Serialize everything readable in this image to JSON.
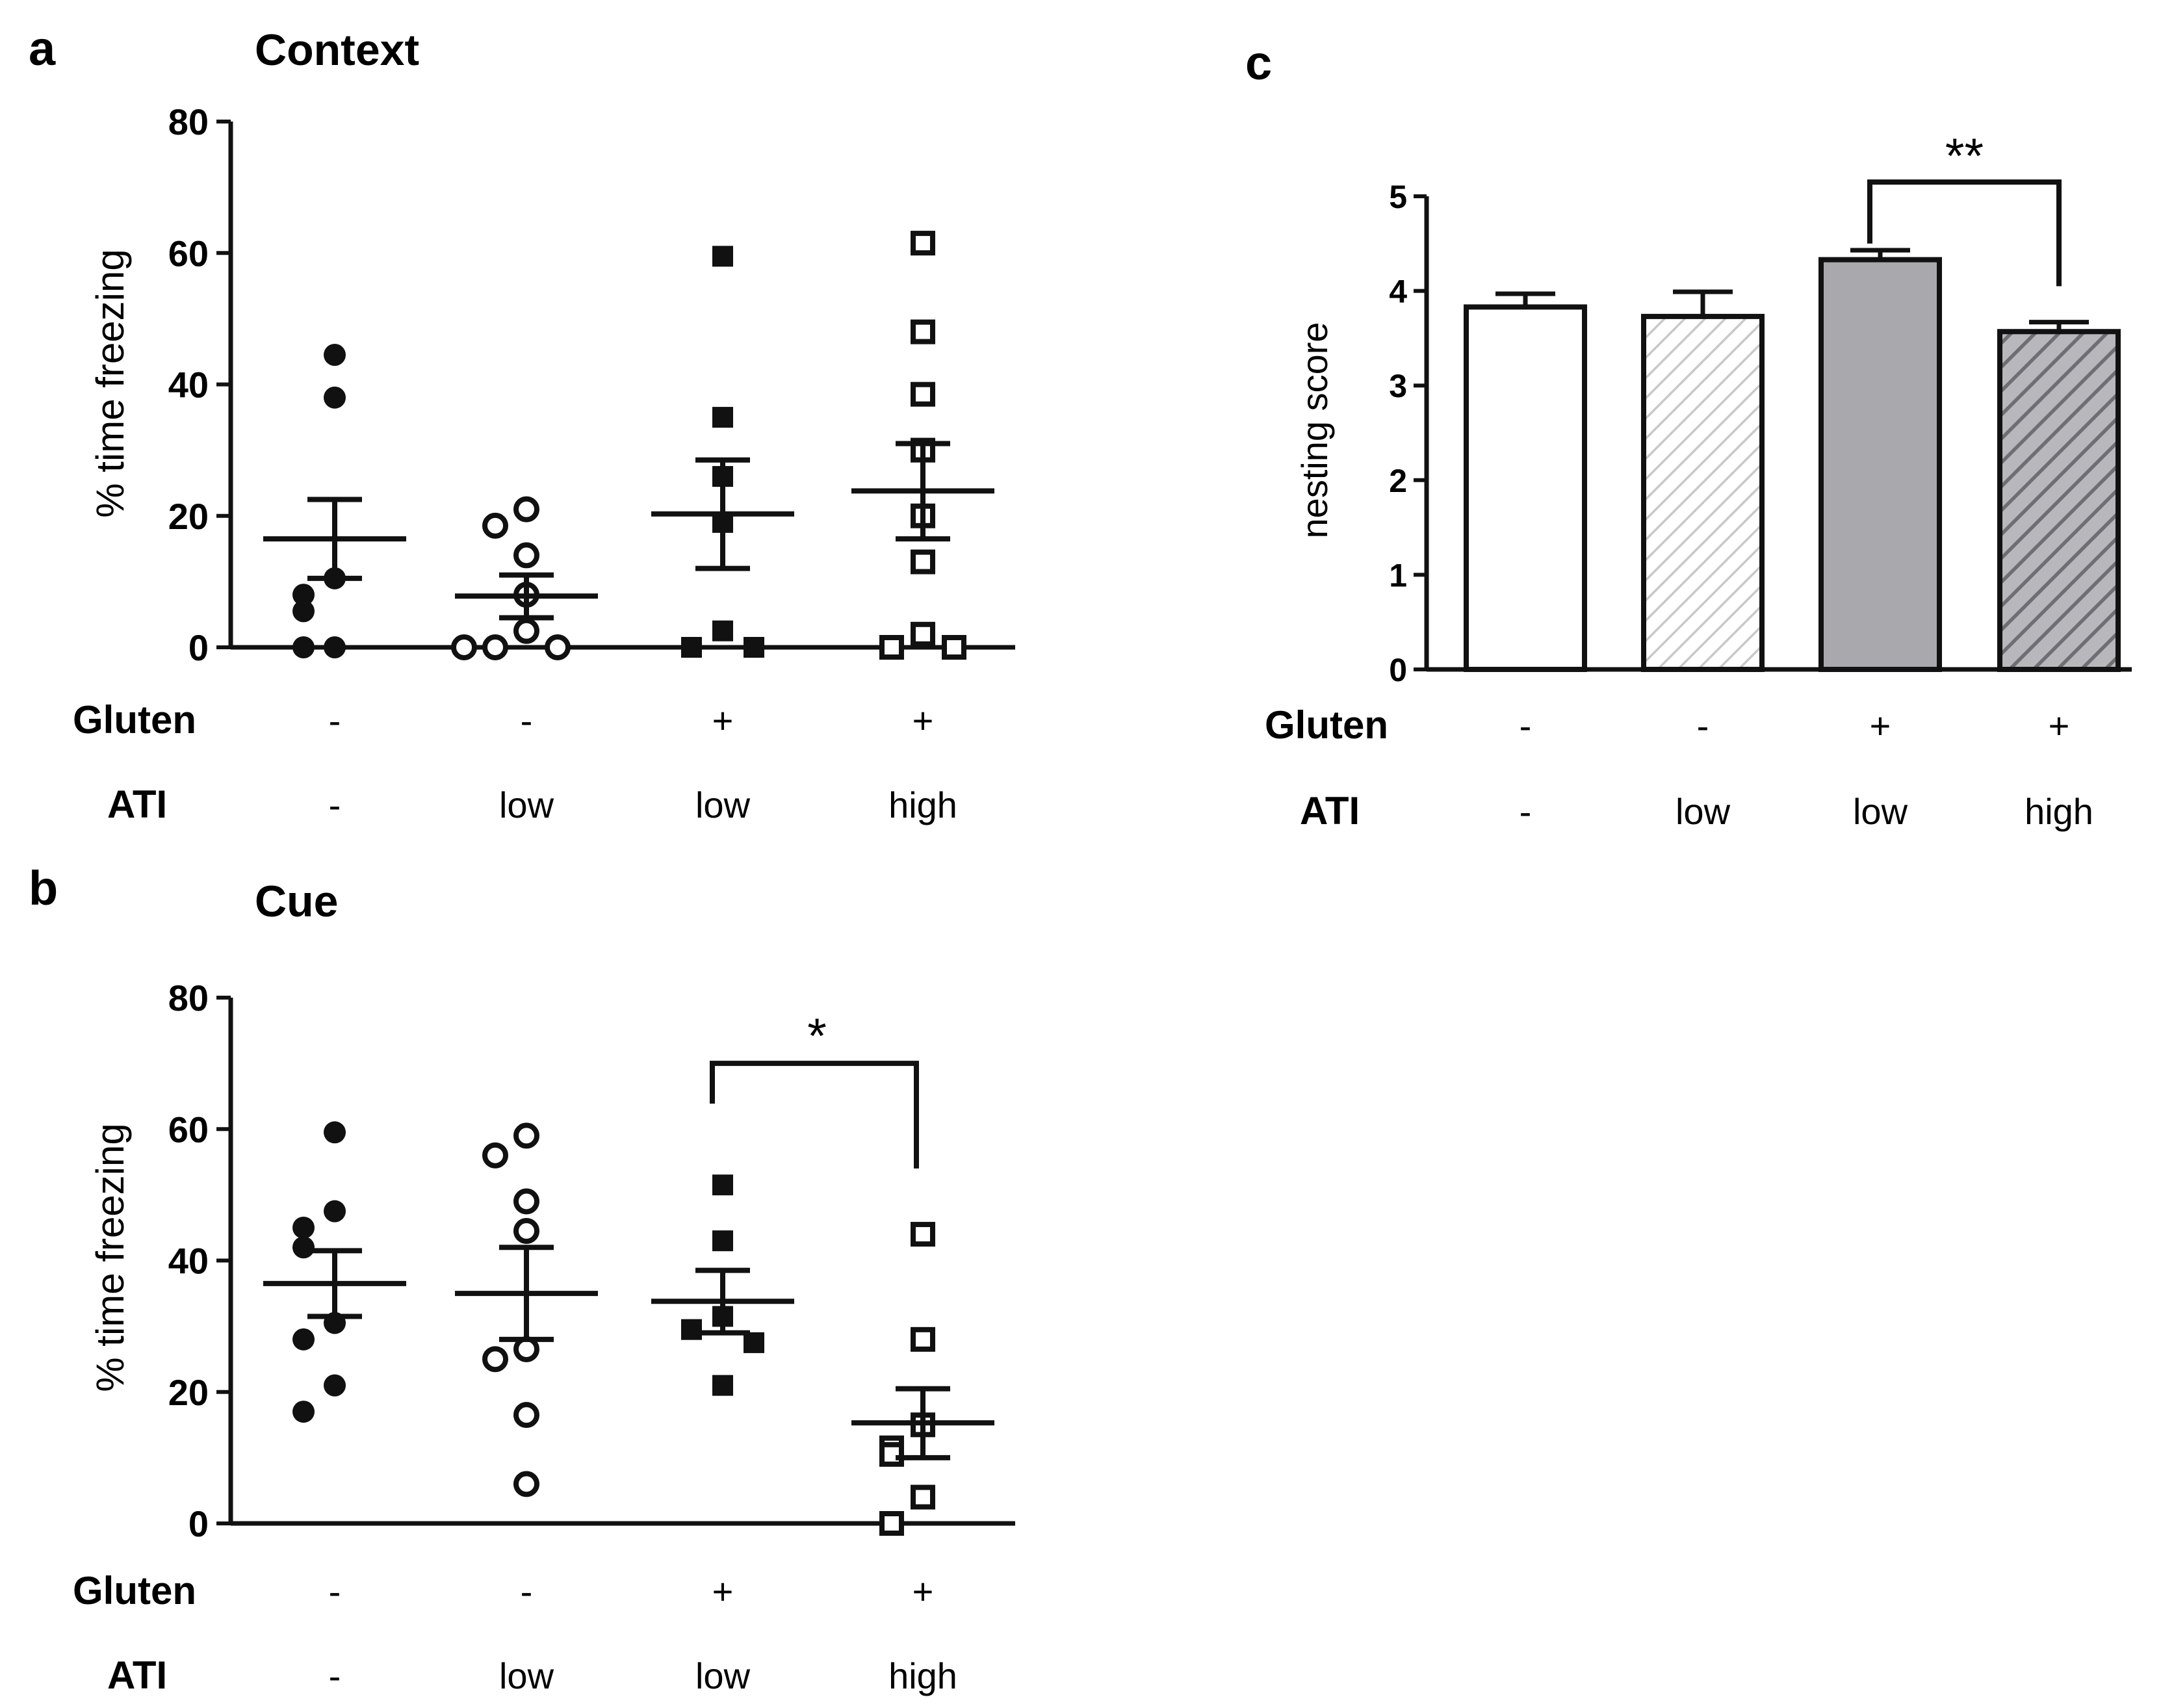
{
  "figure": {
    "panel_a": {
      "letter": "a",
      "title": "Context"
    },
    "panel_b": {
      "letter": "b",
      "title": "Cue"
    },
    "panel_c": {
      "letter": "c"
    },
    "row_labels": {
      "gluten": "Gluten",
      "ati": "ATI"
    }
  },
  "chart_data": [
    {
      "id": "a",
      "type": "scatter",
      "title": "Context",
      "ylabel": "% time freezing",
      "ylim": [
        0,
        80
      ],
      "yticks": [
        0,
        20,
        40,
        60,
        80
      ],
      "groups": [
        {
          "gluten": "-",
          "ati": "-",
          "marker": "filled-circle",
          "values": [
            44.5,
            38,
            10.5,
            8,
            5.5,
            0,
            0
          ],
          "mean": 16.5,
          "sem_low": 10.5,
          "sem_high": 22.5
        },
        {
          "gluten": "-",
          "ati": "low",
          "marker": "open-circle",
          "values": [
            21,
            18.5,
            14,
            8,
            2.5,
            0,
            0,
            0
          ],
          "mean": 7.8,
          "sem_low": 4.5,
          "sem_high": 11
        },
        {
          "gluten": "+",
          "ati": "low",
          "marker": "filled-square",
          "values": [
            59.5,
            35,
            26,
            19,
            2.5,
            0,
            0
          ],
          "mean": 20.3,
          "sem_low": 12,
          "sem_high": 28.5
        },
        {
          "gluten": "+",
          "ati": "high",
          "marker": "open-square",
          "values": [
            61.5,
            48,
            38.5,
            30,
            20,
            13,
            2,
            0,
            0
          ],
          "mean": 23.8,
          "sem_low": 16.5,
          "sem_high": 31
        }
      ]
    },
    {
      "id": "b",
      "type": "scatter",
      "title": "Cue",
      "ylabel": "% time freezing",
      "ylim": [
        0,
        80
      ],
      "yticks": [
        0,
        20,
        40,
        60,
        80
      ],
      "groups": [
        {
          "gluten": "-",
          "ati": "-",
          "marker": "filled-circle",
          "values": [
            59.5,
            47.5,
            45,
            42,
            30.5,
            28,
            21,
            17
          ],
          "mean": 36.5,
          "sem_low": 31.5,
          "sem_high": 41.5
        },
        {
          "gluten": "-",
          "ati": "low",
          "marker": "open-circle",
          "values": [
            59,
            56,
            49,
            44.5,
            26.5,
            25,
            16.5,
            6
          ],
          "mean": 35,
          "sem_low": 28,
          "sem_high": 42
        },
        {
          "gluten": "+",
          "ati": "low",
          "marker": "filled-square",
          "values": [
            51.5,
            43,
            31.5,
            29.5,
            27.5,
            21
          ],
          "mean": 33.8,
          "sem_low": 29,
          "sem_high": 38.5
        },
        {
          "gluten": "+",
          "ati": "high",
          "marker": "open-square",
          "values": [
            44,
            28,
            15,
            11.5,
            10.5,
            4,
            0
          ],
          "mean": 15.3,
          "sem_low": 10,
          "sem_high": 20.5
        }
      ],
      "significance": {
        "from_group": 2,
        "to_group": 3,
        "label": "*",
        "bracket_y": 70,
        "right_drop_to": 54
      }
    },
    {
      "id": "c",
      "type": "bar",
      "ylabel": "nesting score",
      "ylim": [
        0,
        5
      ],
      "yticks": [
        0,
        1,
        2,
        3,
        4,
        5
      ],
      "groups": [
        {
          "gluten": "-",
          "ati": "-",
          "value": 3.83,
          "err": 0.14,
          "fill": "white"
        },
        {
          "gluten": "-",
          "ati": "low",
          "value": 3.73,
          "err": 0.26,
          "fill": "light-hatched"
        },
        {
          "gluten": "+",
          "ati": "low",
          "value": 4.33,
          "err": 0.1,
          "fill": "grey"
        },
        {
          "gluten": "+",
          "ati": "high",
          "value": 3.57,
          "err": 0.1,
          "fill": "grey-hatched"
        }
      ],
      "significance": {
        "from_group": 2,
        "to_group": 3,
        "label": "**",
        "bracket_y": 5.15,
        "left_drop_to": 4.5,
        "right_drop_to": 4.05
      }
    }
  ]
}
